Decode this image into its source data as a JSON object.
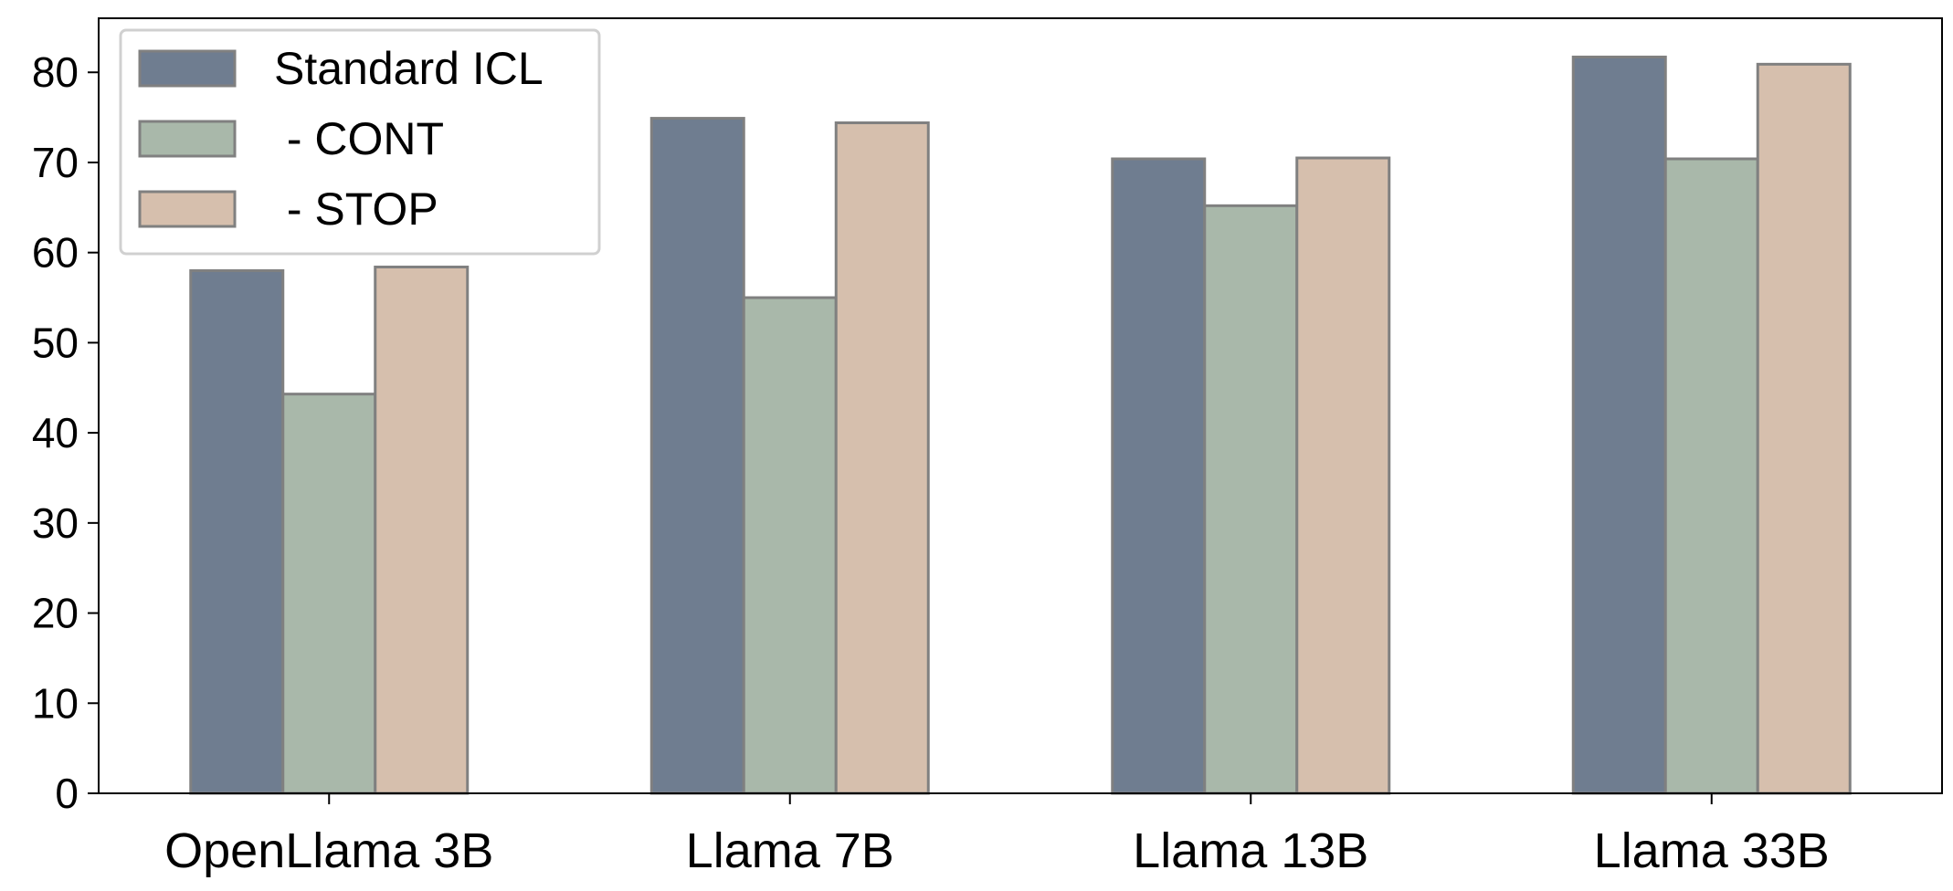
{
  "chart_data": {
    "type": "bar",
    "title": "",
    "xlabel": "",
    "ylabel": "",
    "categories": [
      "OpenLlama 3B",
      "Llama 7B",
      "Llama 13B",
      "Llama 33B"
    ],
    "series": [
      {
        "name": "Standard ICL",
        "color": "#6f7d90",
        "values": [
          58.0,
          74.9,
          70.4,
          81.7
        ]
      },
      {
        "name": " - CONT",
        "color": "#a9b8aa",
        "values": [
          44.3,
          55.0,
          65.2,
          70.4
        ]
      },
      {
        "name": " - STOP",
        "color": "#d6bfad",
        "values": [
          58.4,
          74.4,
          70.5,
          80.9
        ]
      }
    ],
    "ylim": [
      0,
      86
    ],
    "yticks": [
      0,
      10,
      20,
      30,
      40,
      50,
      60,
      70,
      80
    ],
    "grid": false,
    "legend_position": "top-left",
    "bar_edge_color": "#808080"
  }
}
